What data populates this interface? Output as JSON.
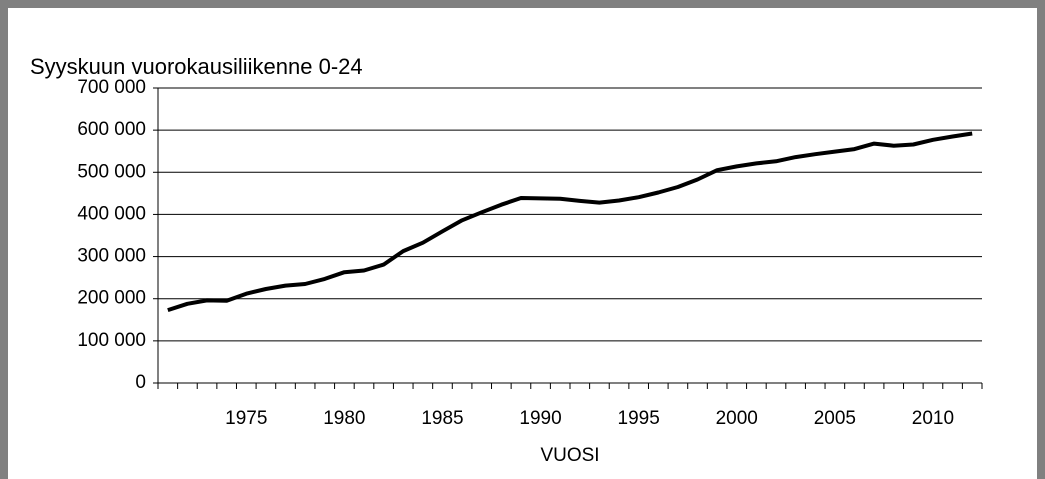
{
  "chart_data": {
    "type": "line",
    "title": "Syyskuun vuorokausiliikenne 0-24",
    "x_label": "VUOSI",
    "categories": [
      null,
      null,
      null,
      null,
      "1975",
      null,
      null,
      null,
      null,
      "1980",
      null,
      null,
      null,
      null,
      "1985",
      null,
      null,
      null,
      null,
      "1990",
      null,
      null,
      null,
      null,
      "1995",
      null,
      null,
      null,
      null,
      "2000",
      null,
      null,
      null,
      null,
      "2005",
      null,
      null,
      null,
      null,
      "2010",
      null,
      null
    ],
    "series": [
      {
        "name": "Syyskuun vuorokausiliikenne",
        "color": "#000000",
        "values": [
          173000,
          188000,
          196000,
          195000,
          212000,
          223000,
          231000,
          235000,
          247000,
          263000,
          267000,
          281000,
          313000,
          333000,
          360000,
          386000,
          405000,
          423000,
          439000,
          438000,
          437000,
          432000,
          428000,
          433000,
          441000,
          452000,
          465000,
          483000,
          505000,
          514000,
          521000,
          526000,
          536000,
          543000,
          549000,
          555000,
          568000,
          563000,
          566000,
          577000,
          585000,
          592000
        ]
      }
    ],
    "ylim": [
      0,
      700000
    ],
    "yticks": [
      0,
      {
        "value": 100000,
        "label": "100 000"
      },
      {
        "value": 200000,
        "label": "200 000"
      },
      {
        "value": 300000,
        "label": "300 000"
      },
      {
        "value": 400000,
        "label": "400 000"
      },
      {
        "value": 500000,
        "label": "500 000"
      },
      {
        "value": 600000,
        "label": "600 000"
      },
      {
        "value": 700000,
        "label": "700 000"
      }
    ],
    "grid": true
  }
}
